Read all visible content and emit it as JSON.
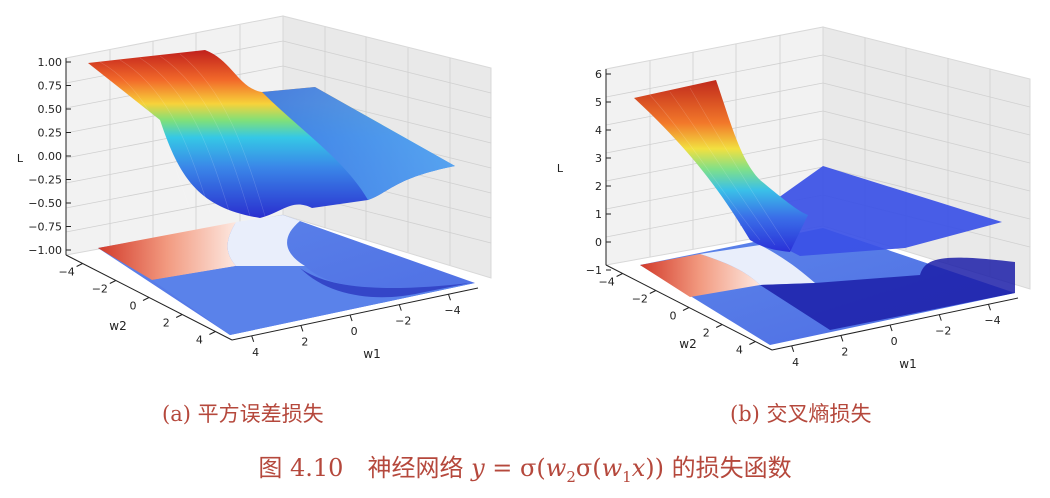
{
  "chart_data": [
    {
      "type": "surface3d",
      "caption": "(a) 平方误差损失",
      "zlabel": "L",
      "xlabel": "w1",
      "ylabel": "w2",
      "z_ticks": [
        "1.00",
        "0.75",
        "0.50",
        "0.25",
        "0.00",
        "−0.25",
        "−0.50",
        "−0.75",
        "−1.00"
      ],
      "w1_ticks": [
        "4",
        "2",
        "0",
        "−2",
        "−4"
      ],
      "w2_ticks": [
        "−4",
        "−2",
        "0",
        "2",
        "4"
      ],
      "zlim": [
        -1,
        1
      ],
      "w_range": [
        -5,
        5
      ],
      "colormap": "jet",
      "has_contour_projection": true
    },
    {
      "type": "surface3d",
      "caption": "(b) 交叉熵损失",
      "zlabel": "L",
      "xlabel": "w1",
      "ylabel": "w2",
      "z_ticks": [
        "6",
        "5",
        "4",
        "3",
        "2",
        "1",
        "0",
        "−1"
      ],
      "w1_ticks": [
        "4",
        "2",
        "0",
        "−2",
        "−4"
      ],
      "w2_ticks": [
        "−4",
        "−2",
        "0",
        "2",
        "4"
      ],
      "zlim": [
        -1,
        6
      ],
      "w_range": [
        -5,
        5
      ],
      "colormap": "jet",
      "has_contour_projection": true
    }
  ],
  "figure_caption": {
    "prefix": "图 4.10　神经网络 ",
    "y": "y",
    "eq": " = σ(",
    "w2": "w",
    "w2_sub": "2",
    "sigma2": "σ(",
    "w1": "w",
    "w1_sub": "1",
    "x": "x",
    "close": "))",
    "suffix": " 的损失函数"
  }
}
